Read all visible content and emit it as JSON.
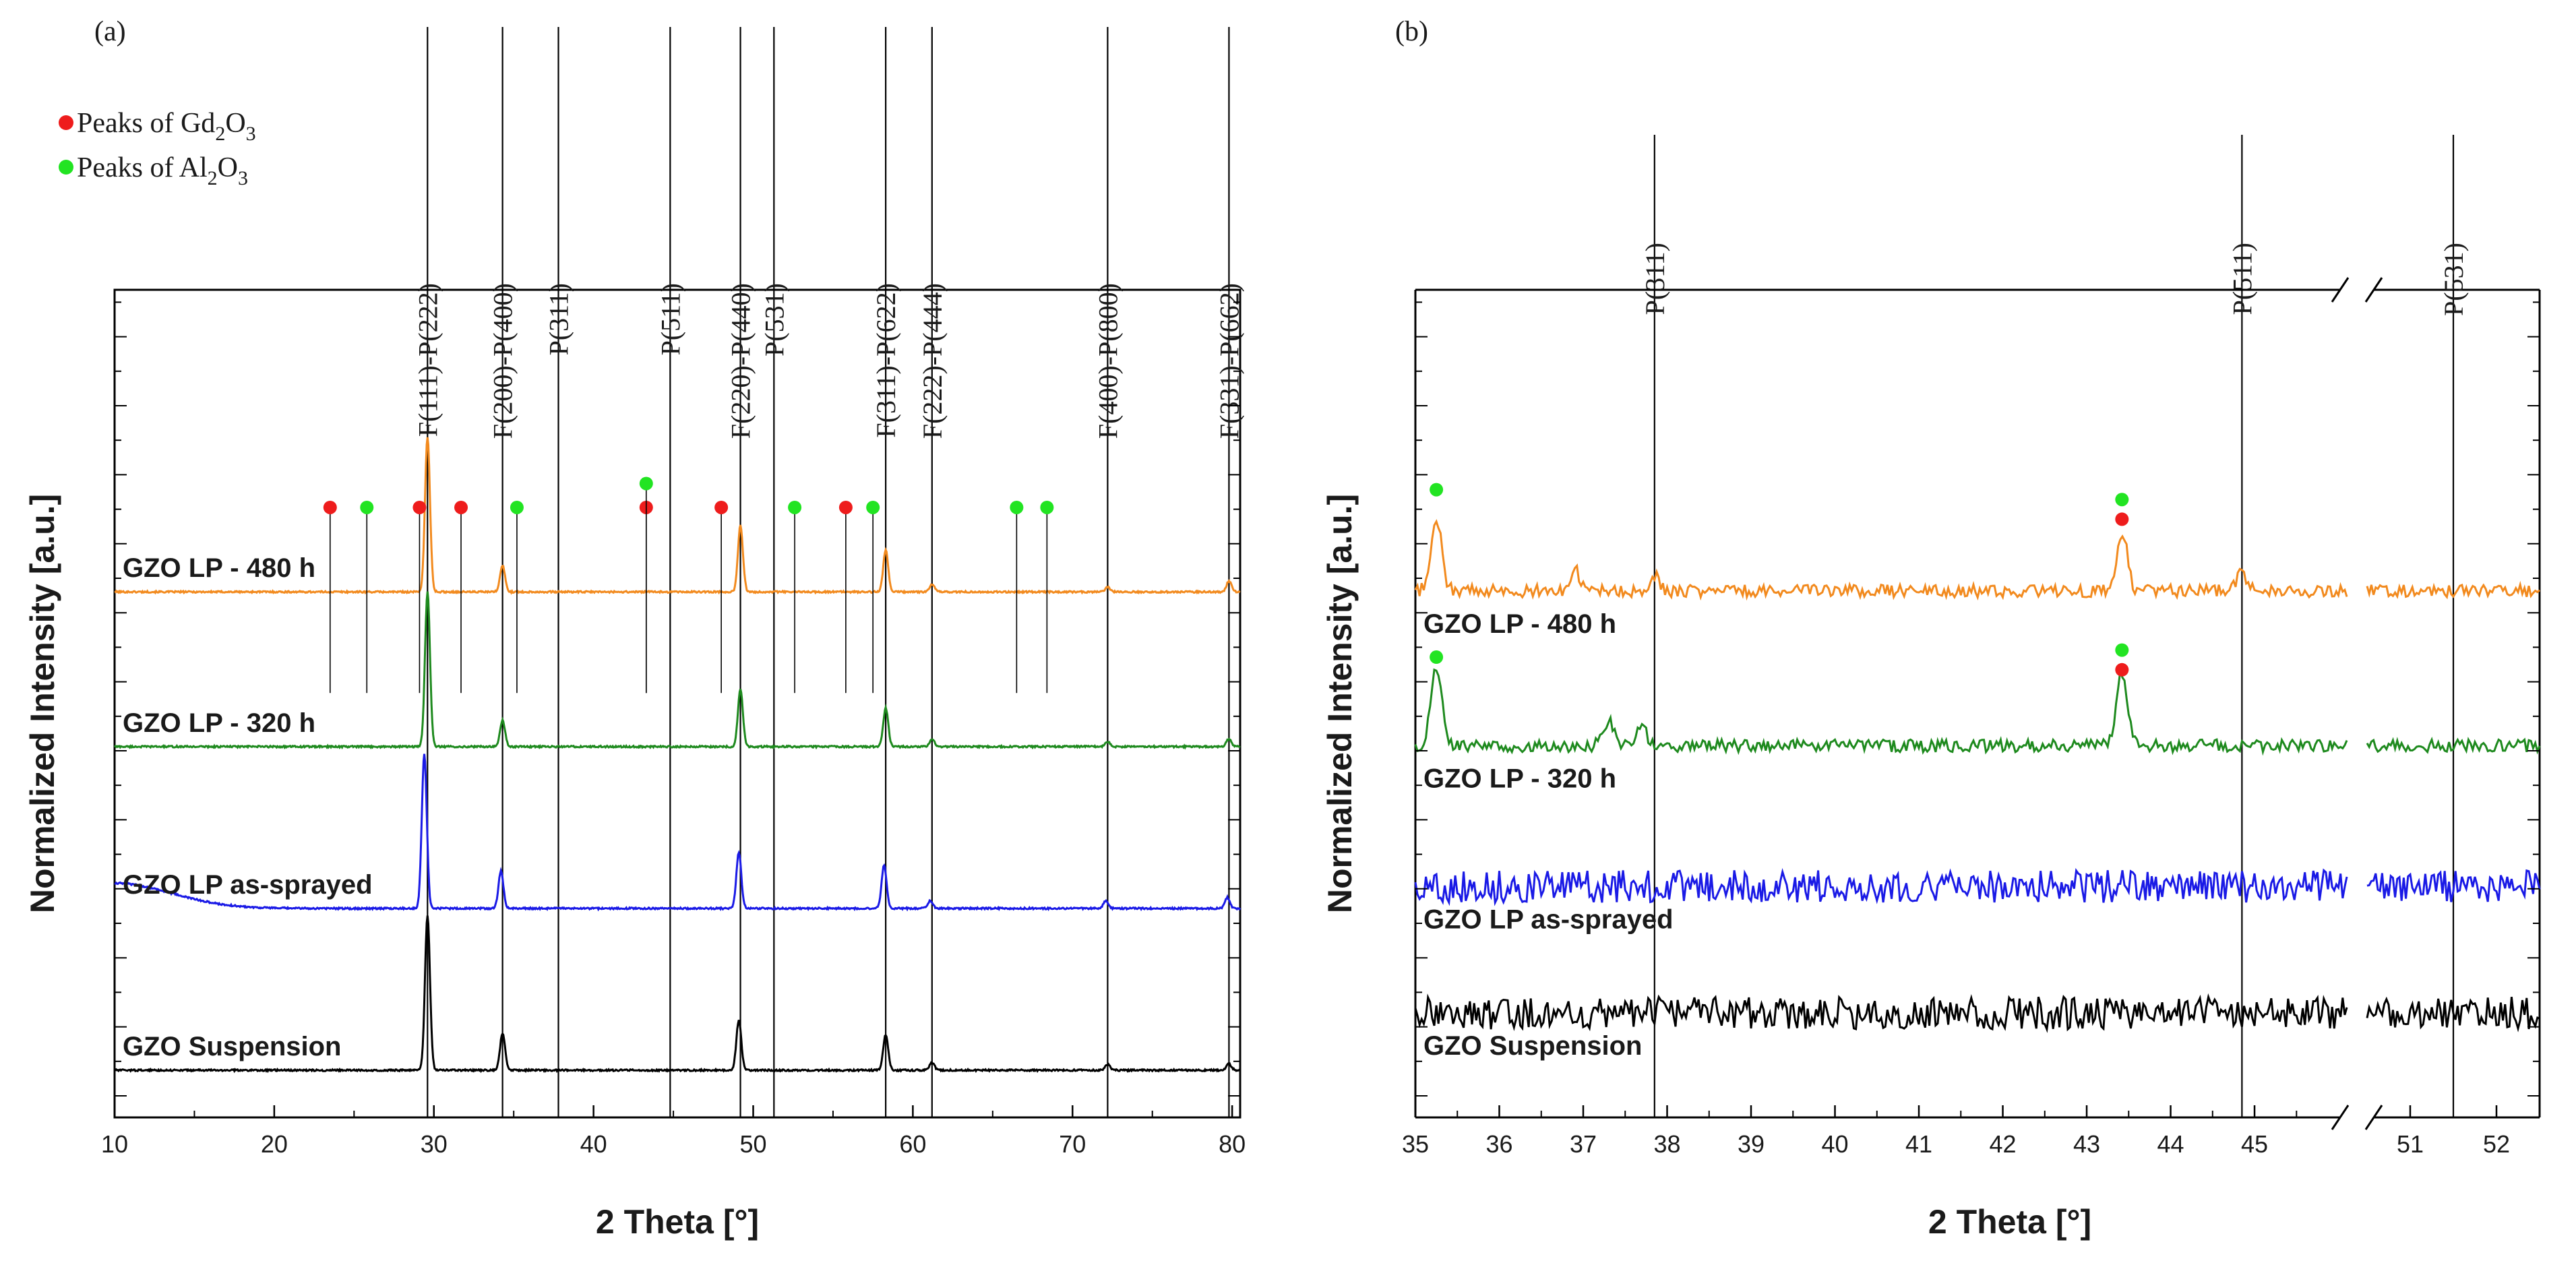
{
  "figure": {
    "legend": [
      {
        "label": "Peaks of Gd",
        "sub": "2",
        "mid": "O",
        "sub2": "3",
        "color": "#ee1c1c"
      },
      {
        "label": "Peaks of Al",
        "sub": "2",
        "mid": "O",
        "sub2": "3",
        "color": "#22e422"
      }
    ]
  },
  "chart_data": [
    {
      "id": "a",
      "panel_label": "(a)",
      "type": "line",
      "title": "",
      "xlabel": "2 Theta [°]",
      "ylabel": "Normalized Intensity [a.u.]",
      "xlim": [
        10,
        80.5
      ],
      "xticks": [
        10,
        20,
        30,
        40,
        50,
        60,
        70,
        80
      ],
      "ylim": [
        0,
        5
      ],
      "reference_lines": [
        {
          "x": 29.6,
          "label": "F(111)-P(222)"
        },
        {
          "x": 34.3,
          "label": "F(200)-P(400)"
        },
        {
          "x": 37.8,
          "label": "P(311)"
        },
        {
          "x": 44.8,
          "label": "P(511)"
        },
        {
          "x": 49.2,
          "label": "F(220)-P(440)"
        },
        {
          "x": 51.3,
          "label": "P(531)"
        },
        {
          "x": 58.3,
          "label": "F(311)-P(622)"
        },
        {
          "x": 61.2,
          "label": "F(222)-P(444)"
        },
        {
          "x": 72.2,
          "label": "F(400)-P(800)"
        },
        {
          "x": 79.8,
          "label": "F(331)-P(662)"
        }
      ],
      "series": [
        {
          "name": "GZO LP - 480 h",
          "color": "#f28a1e",
          "offset": 3.4,
          "peaks": [
            [
              29.6,
              1.0
            ],
            [
              34.3,
              0.17
            ],
            [
              49.2,
              0.43
            ],
            [
              58.3,
              0.27
            ],
            [
              61.2,
              0.05
            ],
            [
              72.2,
              0.03
            ],
            [
              79.8,
              0.07
            ]
          ]
        },
        {
          "name": "GZO LP - 320 h",
          "color": "#1e8a1e",
          "offset": 2.3,
          "peaks": [
            [
              29.6,
              1.0
            ],
            [
              34.3,
              0.17
            ],
            [
              49.2,
              0.37
            ],
            [
              58.3,
              0.25
            ],
            [
              61.2,
              0.05
            ],
            [
              72.2,
              0.03
            ],
            [
              79.8,
              0.05
            ]
          ]
        },
        {
          "name": "GZO LP as-sprayed",
          "color": "#1a1ae6",
          "offset": 1.15,
          "peaks": [
            [
              29.4,
              1.0
            ],
            [
              34.2,
              0.24
            ],
            [
              49.1,
              0.36
            ],
            [
              58.2,
              0.28
            ],
            [
              61.1,
              0.05
            ],
            [
              72.1,
              0.05
            ],
            [
              79.7,
              0.07
            ]
          ]
        },
        {
          "name": "GZO Suspension",
          "color": "#000000",
          "offset": 0.0,
          "peaks": [
            [
              29.6,
              1.0
            ],
            [
              34.3,
              0.24
            ],
            [
              49.1,
              0.32
            ],
            [
              58.3,
              0.23
            ],
            [
              61.2,
              0.05
            ],
            [
              72.2,
              0.04
            ],
            [
              79.8,
              0.04
            ]
          ]
        }
      ],
      "markers": [
        {
          "x": 23.5,
          "y": 4.0,
          "phase": "Gd2O3"
        },
        {
          "x": 25.8,
          "y": 4.0,
          "phase": "Al2O3"
        },
        {
          "x": 29.1,
          "y": 4.0,
          "phase": "Gd2O3"
        },
        {
          "x": 31.7,
          "y": 4.0,
          "phase": "Gd2O3"
        },
        {
          "x": 35.2,
          "y": 4.0,
          "phase": "Al2O3"
        },
        {
          "x": 43.3,
          "y": 4.0,
          "phase": "Gd2O3"
        },
        {
          "x": 43.3,
          "y": 4.17,
          "phase": "Al2O3"
        },
        {
          "x": 48.0,
          "y": 4.0,
          "phase": "Gd2O3"
        },
        {
          "x": 52.6,
          "y": 4.0,
          "phase": "Al2O3"
        },
        {
          "x": 55.8,
          "y": 4.0,
          "phase": "Gd2O3"
        },
        {
          "x": 57.5,
          "y": 4.0,
          "phase": "Al2O3"
        },
        {
          "x": 66.5,
          "y": 4.0,
          "phase": "Al2O3"
        },
        {
          "x": 68.4,
          "y": 4.0,
          "phase": "Al2O3"
        }
      ]
    },
    {
      "id": "b",
      "panel_label": "(b)",
      "type": "line",
      "title": "",
      "xlabel": "2 Theta [°]",
      "ylabel": "Normalized Intensity [a.u.]",
      "xlim": [
        35,
        52.5
      ],
      "axis_break": {
        "from": 46.1,
        "to": 50.5
      },
      "xticks": [
        35,
        36,
        37,
        38,
        39,
        40,
        41,
        42,
        43,
        44,
        45,
        51,
        52
      ],
      "ylim": [
        0,
        5
      ],
      "reference_lines": [
        {
          "x": 37.85,
          "label": "P(311)"
        },
        {
          "x": 44.85,
          "label": "P(511)"
        },
        {
          "x": 51.5,
          "label": "P(531)"
        }
      ],
      "series": [
        {
          "name": "GZO LP - 480 h",
          "color": "#f28a1e",
          "offset": 3.55,
          "peaks": [
            [
              35.25,
              0.5
            ],
            [
              36.9,
              0.14
            ],
            [
              37.85,
              0.1
            ],
            [
              43.42,
              0.4
            ],
            [
              44.85,
              0.12
            ]
          ]
        },
        {
          "name": "GZO LP - 320 h",
          "color": "#1e8a1e",
          "offset": 2.45,
          "peaks": [
            [
              35.25,
              0.55
            ],
            [
              37.3,
              0.17
            ],
            [
              37.7,
              0.12
            ],
            [
              43.42,
              0.5
            ]
          ]
        },
        {
          "name": "GZO LP as-sprayed",
          "color": "#1a1ae6",
          "offset": 1.45,
          "peaks": []
        },
        {
          "name": "GZO Suspension",
          "color": "#000000",
          "offset": 0.55,
          "peaks": []
        }
      ],
      "markers": [
        {
          "x": 35.25,
          "y": 4.27,
          "phase": "Al2O3"
        },
        {
          "x": 43.42,
          "y": 4.2,
          "phase": "Al2O3"
        },
        {
          "x": 43.42,
          "y": 4.06,
          "phase": "Gd2O3"
        },
        {
          "x": 35.25,
          "y": 3.08,
          "phase": "Al2O3"
        },
        {
          "x": 43.42,
          "y": 3.13,
          "phase": "Al2O3"
        },
        {
          "x": 43.42,
          "y": 2.99,
          "phase": "Gd2O3"
        }
      ]
    }
  ]
}
